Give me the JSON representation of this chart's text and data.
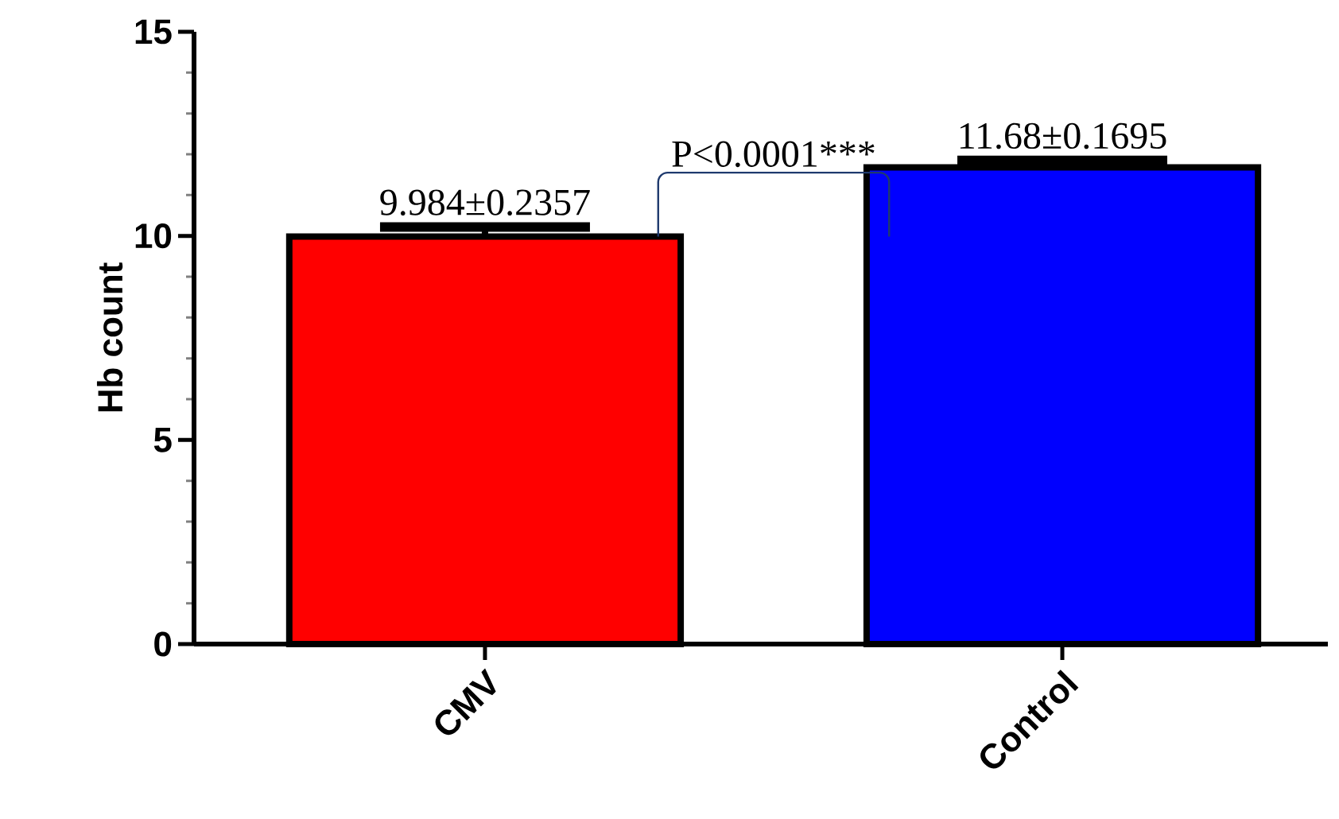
{
  "chart_data": {
    "type": "bar",
    "ylabel": "Hb count",
    "categories": [
      "CMV",
      "Control"
    ],
    "values": [
      9.984,
      11.68
    ],
    "errors": [
      0.2357,
      0.1695
    ],
    "colors": [
      "#ff0000",
      "#0000ff"
    ],
    "value_labels": [
      "9.984±0.2357",
      "11.68±0.1695"
    ],
    "ylim": [
      0,
      15
    ],
    "yticks": [
      0,
      5,
      10,
      15
    ],
    "annotations": [
      "P<0.0001***"
    ]
  }
}
